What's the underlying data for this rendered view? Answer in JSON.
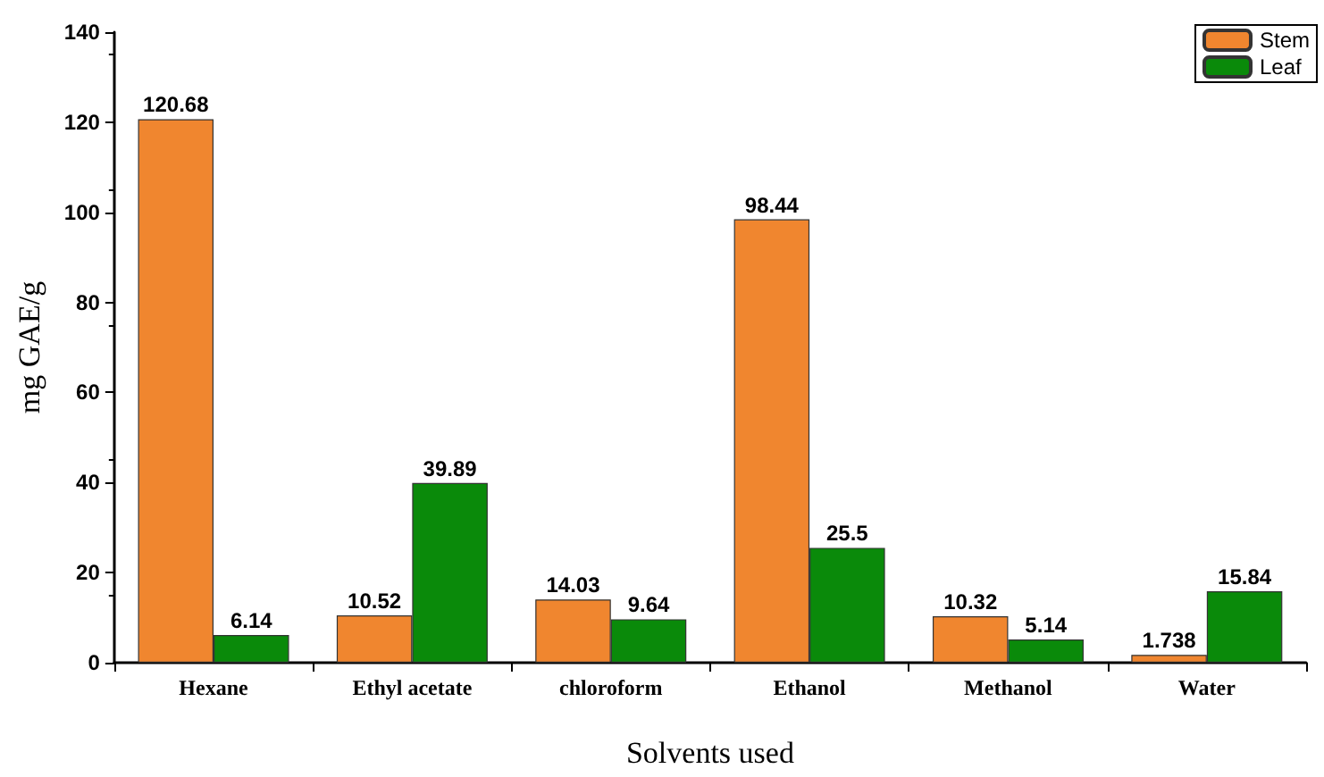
{
  "chart_data": {
    "type": "bar",
    "xlabel": "Solvents used",
    "ylabel": "mg GAE/g",
    "categories": [
      "Hexane",
      "Ethyl acetate",
      "chloroform",
      "Ethanol",
      "Methanol",
      "Water"
    ],
    "series": [
      {
        "name": "Stem",
        "color": "#f0862f",
        "values": [
          120.68,
          10.52,
          14.03,
          98.44,
          10.32,
          1.738
        ]
      },
      {
        "name": "Leaf",
        "color": "#0a8a0a",
        "values": [
          6.14,
          39.89,
          9.64,
          25.5,
          5.14,
          15.84
        ]
      }
    ],
    "ylim": [
      0,
      140
    ],
    "yticks": [
      0,
      20,
      40,
      60,
      80,
      100,
      120,
      140
    ],
    "data_labels": true,
    "legend": "top right",
    "grid": false
  }
}
